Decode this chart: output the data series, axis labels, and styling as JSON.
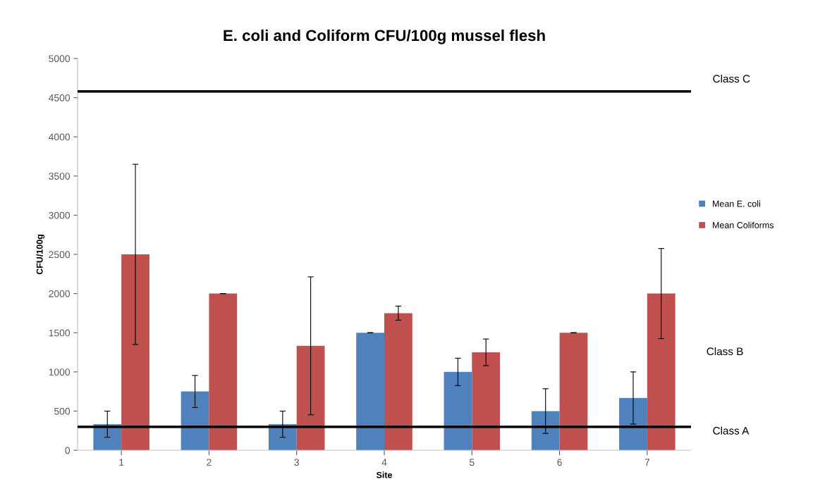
{
  "chart_data": {
    "type": "bar",
    "title": "E. coli and Coliform CFU/100g mussel flesh",
    "xlabel": "Site",
    "ylabel": "CFU/100g",
    "categories": [
      "1",
      "2",
      "3",
      "4",
      "5",
      "6",
      "7"
    ],
    "series": [
      {
        "name": "Mean E. coli",
        "color": "#4f81bd",
        "values": [
          333,
          750,
          333,
          1500,
          1000,
          500,
          667
        ],
        "errors": [
          167,
          205,
          167,
          0,
          175,
          285,
          333
        ]
      },
      {
        "name": "Mean Coliforms",
        "color": "#c0504d",
        "values": [
          2500,
          2000,
          1333,
          1750,
          1250,
          1500,
          2000
        ],
        "errors": [
          1150,
          0,
          880,
          90,
          170,
          0,
          575
        ]
      }
    ],
    "ylim": [
      0,
      5000
    ],
    "yticks": [
      0,
      500,
      1000,
      1500,
      2000,
      2500,
      3000,
      3500,
      4000,
      4500,
      5000
    ],
    "ref_lines": [
      {
        "axis": "y",
        "value": 4580,
        "label": "Class C",
        "color": "#000000"
      },
      {
        "axis": "y",
        "value": 300,
        "label": "Class A",
        "color": "#000000"
      }
    ],
    "annotations": [
      "Class B"
    ],
    "grid": false,
    "legend": "right"
  }
}
